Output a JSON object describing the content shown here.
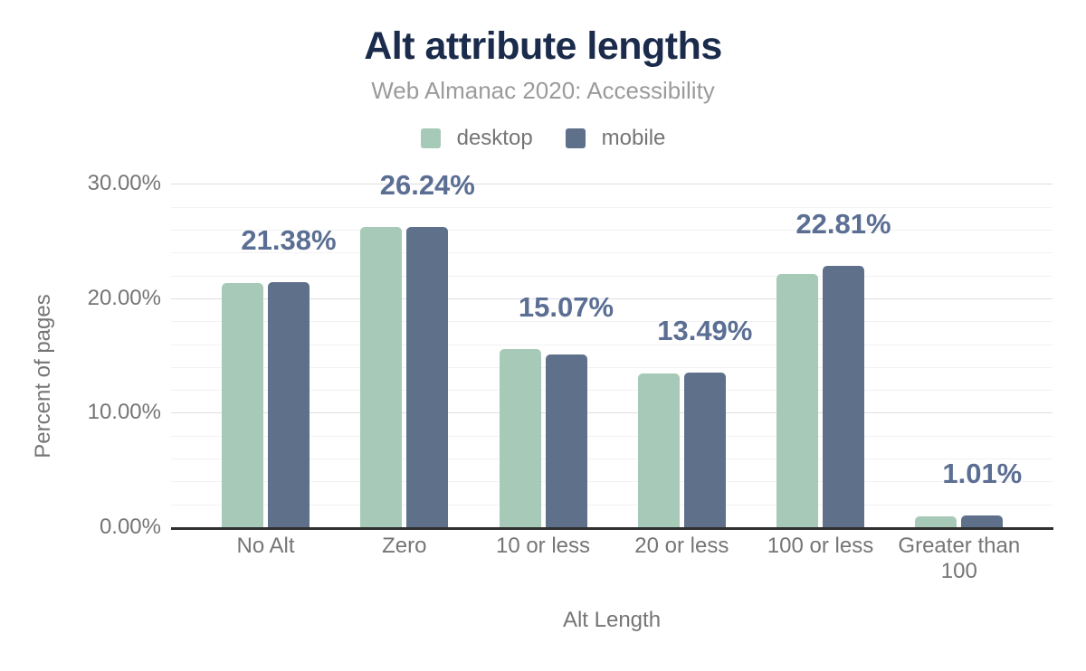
{
  "chart_data": {
    "type": "bar",
    "title": "Alt attribute lengths",
    "subtitle": "Web Almanac 2020: Accessibility",
    "xlabel": "Alt Length",
    "ylabel": "Percent of pages",
    "categories": [
      "No Alt",
      "Zero",
      "10 or less",
      "20 or less",
      "100 or less",
      "Greater than 100"
    ],
    "series": [
      {
        "name": "desktop",
        "color": "#a7c9b7",
        "values": [
          21.3,
          26.2,
          15.6,
          13.4,
          22.1,
          0.95
        ]
      },
      {
        "name": "mobile",
        "color": "#5f708a",
        "values": [
          21.38,
          26.24,
          15.07,
          13.49,
          22.81,
          1.01
        ]
      }
    ],
    "data_labels": [
      "21.38%",
      "26.24%",
      "15.07%",
      "13.49%",
      "22.81%",
      "1.01%"
    ],
    "data_label_series": "mobile",
    "y_ticks": [
      {
        "value": 0,
        "label": "0.00%"
      },
      {
        "value": 10,
        "label": "10.00%"
      },
      {
        "value": 20,
        "label": "20.00%"
      },
      {
        "value": 30,
        "label": "30.00%"
      }
    ],
    "ylim": [
      0,
      30
    ],
    "minor_gridline_step": 2,
    "grid": true,
    "legend_position": "top",
    "colors": {
      "title": "#1b2b4b",
      "subtitle": "#9b9b9b",
      "axis_text": "#757575",
      "data_label": "#5b6e93",
      "major_gridline": "#dedede",
      "minor_gridline": "#f2f2f2",
      "baseline": "#2f2f2f"
    }
  }
}
